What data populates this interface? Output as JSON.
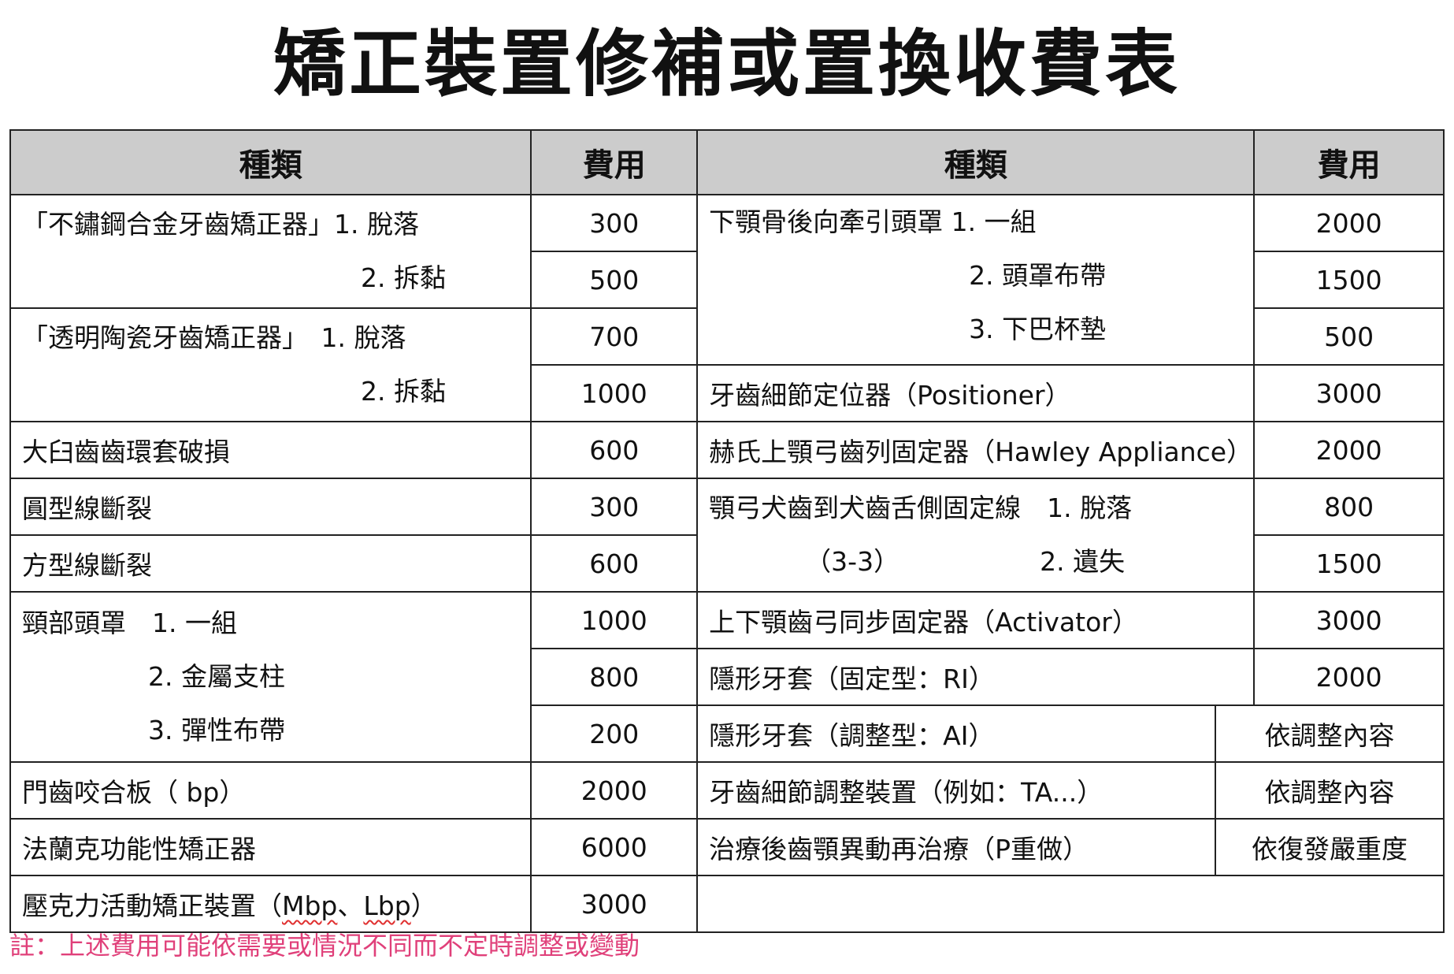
{
  "title": "矯正裝置修補或置換收費表",
  "headers": {
    "left_kind": "種類",
    "left_fee": "費用",
    "right_kind": "種類",
    "right_fee": "費用"
  },
  "left": {
    "steel_bracket": {
      "name": "「不鏽鋼合金牙齒矯正器」1. 脫落",
      "sub2": "2. 拆黏",
      "fee1": "300",
      "fee2": "500"
    },
    "ceramic_bracket": {
      "name": "「透明陶瓷牙齒矯正器」　1. 脫落",
      "sub2": "2. 拆黏",
      "fee1": "700",
      "fee2": "1000"
    },
    "molar_band": {
      "name": "大臼齒齒環套破損",
      "fee": "600"
    },
    "round_wire": {
      "name": "圓型線斷裂",
      "fee": "300"
    },
    "square_wire": {
      "name": "方型線斷裂",
      "fee": "600"
    },
    "neck_headgear": {
      "name": "頸部頭罩　1. 一組",
      "sub2": "2. 金屬支柱",
      "sub3": "3. 彈性布帶",
      "fee1": "1000",
      "fee2": "800",
      "fee3": "200"
    },
    "bite_plate": {
      "name": "門齒咬合板（ bp）",
      "fee": "2000"
    },
    "frankel": {
      "name": "法蘭克功能性矯正器",
      "fee": "6000"
    },
    "acrylic": {
      "name_prefix": "壓克力活動矯正裝置（",
      "mbp": "Mbp",
      "sep": "、",
      "lbp": "Lbp",
      "name_suffix": "）",
      "fee": "3000"
    }
  },
  "right": {
    "reverse_headgear": {
      "name": "下顎骨後向牽引頭罩 1. 一組",
      "sub2": "2. 頭罩布帶",
      "sub3": "3. 下巴杯墊",
      "fee1": "2000",
      "fee2": "1500",
      "fee3": "500"
    },
    "positioner": {
      "name": "牙齒細節定位器（Positioner）",
      "fee": "3000"
    },
    "hawley": {
      "name": "赫氏上顎弓齒列固定器（Hawley Appliance）",
      "fee": "2000"
    },
    "canine_retainer": {
      "name": "顎弓犬齒到犬齒舌側固定線　1. 脫落",
      "paren": "（3-3）",
      "sub2": "2. 遺失",
      "fee1": "800",
      "fee2": "1500"
    },
    "activator": {
      "name": "上下顎齒弓同步固定器（Activator）",
      "fee": "3000"
    },
    "ri": {
      "name": "隱形牙套（固定型：RI）",
      "fee": "2000"
    },
    "ai": {
      "name": "隱形牙套（調整型：AI）",
      "fee": "依調整內容"
    },
    "ta": {
      "name": "牙齒細節調整裝置（例如：TA...）",
      "fee": "依調整內容"
    },
    "retreat": {
      "name": "治療後齒顎異動再治療（P重做）",
      "fee": "依復發嚴重度"
    }
  },
  "note": "註：上述費用可能依需要或情況不同而不定時調整或變動",
  "colors": {
    "header_bg": "#cccccc",
    "note": "#e0407a"
  }
}
